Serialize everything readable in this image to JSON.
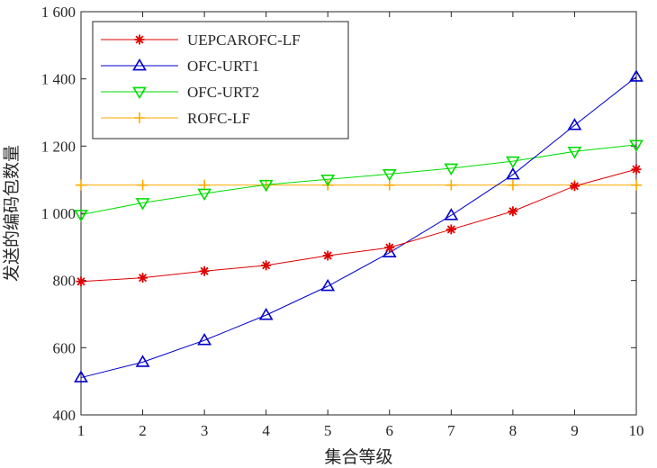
{
  "chart_data": {
    "type": "line",
    "xlabel": "集合等级",
    "ylabel": "发送的编码包数量",
    "xlim": [
      1,
      10
    ],
    "ylim": [
      400,
      1600
    ],
    "x_ticks": [
      "1",
      "2",
      "3",
      "4",
      "5",
      "6",
      "7",
      "8",
      "9",
      "10"
    ],
    "y_ticks": [
      "400",
      "600",
      "800",
      "1 000",
      "1 200",
      "1 400",
      "1 600"
    ],
    "grid": false,
    "legend_position": "top-left",
    "x": [
      1,
      2,
      3,
      4,
      5,
      6,
      7,
      8,
      9,
      10
    ],
    "series": [
      {
        "name": "UEPCAROFC-LF",
        "color": "#e00000",
        "marker": "asterisk",
        "values": [
          797,
          808,
          828,
          845,
          874,
          898,
          952,
          1006,
          1081,
          1131
        ]
      },
      {
        "name": "OFC-URT1",
        "color": "#0000cc",
        "marker": "triangle-up",
        "values": [
          511,
          557,
          622,
          697,
          783,
          883,
          994,
          1115,
          1262,
          1406
        ]
      },
      {
        "name": "OFC-URT2",
        "color": "#00dd00",
        "marker": "triangle-down",
        "values": [
          996,
          1031,
          1059,
          1085,
          1101,
          1117,
          1134,
          1155,
          1184,
          1204
        ]
      },
      {
        "name": "ROFC-LF",
        "color": "#ffaa00",
        "marker": "plus",
        "values": [
          1084,
          1084,
          1084,
          1084,
          1084,
          1084,
          1084,
          1084,
          1084,
          1084
        ]
      }
    ]
  }
}
